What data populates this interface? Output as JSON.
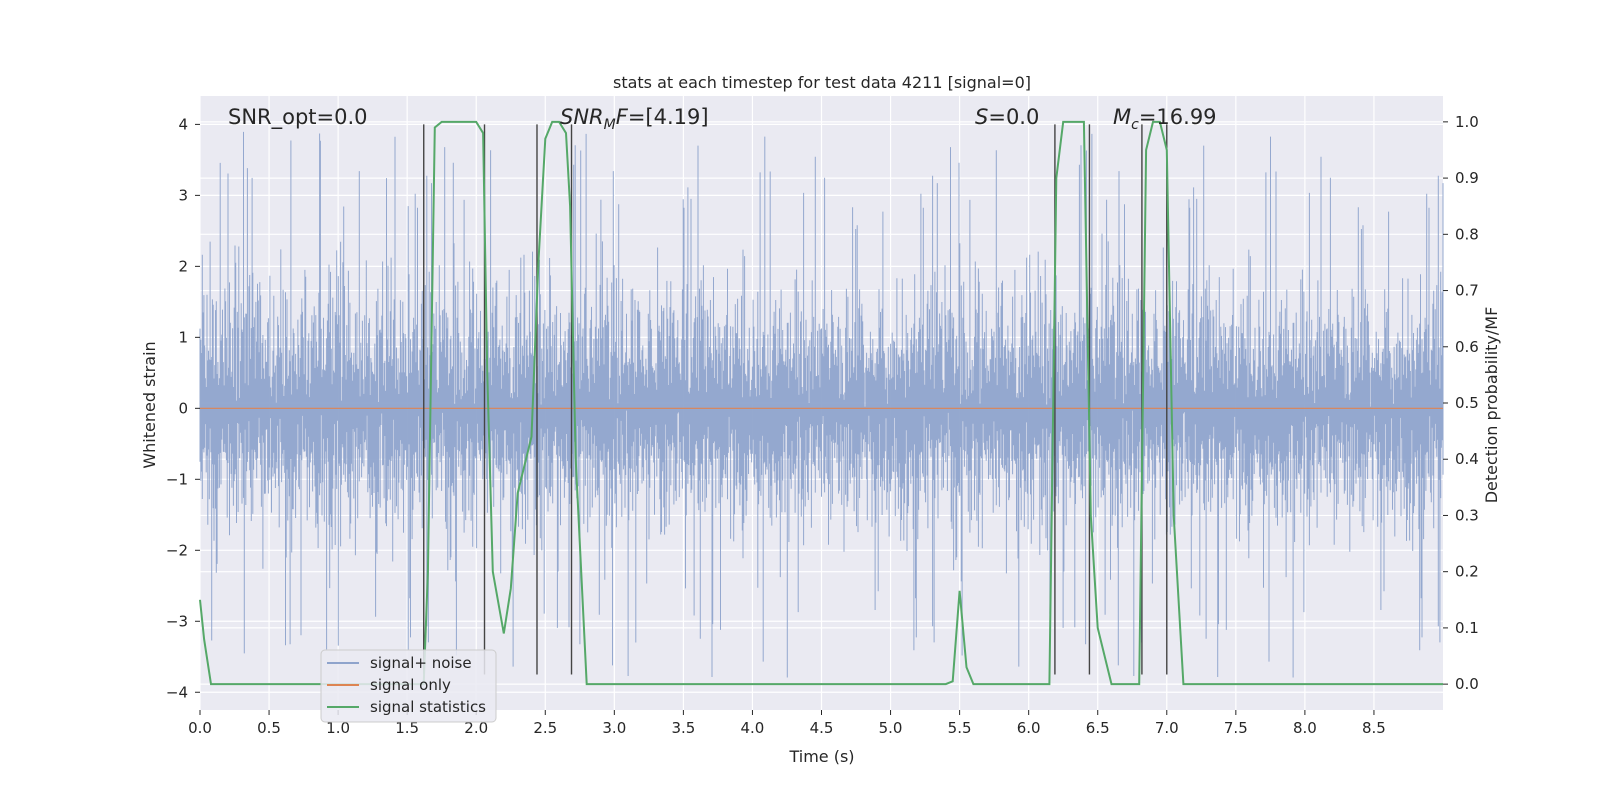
{
  "chart_data": {
    "type": "line",
    "title": "stats at each timestep for test data 4211 [signal=0]",
    "xlabel": "Time (s)",
    "ylabel_left": "Whitened strain",
    "ylabel_right": "Detection probability/MF",
    "xlim": [
      0.0,
      9.0
    ],
    "ylim_left": [
      -4.25,
      4.4
    ],
    "ylim_right": [
      -0.046,
      1.046
    ],
    "x_ticks": [
      "0.0",
      "0.5",
      "1.0",
      "1.5",
      "2.0",
      "2.5",
      "3.0",
      "3.5",
      "4.0",
      "4.5",
      "5.0",
      "5.5",
      "6.0",
      "6.5",
      "7.0",
      "7.5",
      "8.0",
      "8.5"
    ],
    "x_tick_values": [
      0.0,
      0.5,
      1.0,
      1.5,
      2.0,
      2.5,
      3.0,
      3.5,
      4.0,
      4.5,
      5.0,
      5.5,
      6.0,
      6.5,
      7.0,
      7.5,
      8.0,
      8.5
    ],
    "y_left_ticks": [
      "4",
      "3",
      "2",
      "1",
      "0",
      "−1",
      "−2",
      "−3",
      "−4"
    ],
    "y_left_tick_values": [
      4,
      3,
      2,
      1,
      0,
      -1,
      -2,
      -3,
      -4
    ],
    "y_right_ticks": [
      "1.0",
      "0.9",
      "0.8",
      "0.7",
      "0.6",
      "0.5",
      "0.4",
      "0.3",
      "0.2",
      "0.1",
      "0.0"
    ],
    "y_right_tick_values": [
      1.0,
      0.9,
      0.8,
      0.7,
      0.6,
      0.5,
      0.4,
      0.3,
      0.2,
      0.1,
      0.0
    ],
    "grid": true,
    "legend_position": "lower-left",
    "annotations": {
      "snr_opt": "SNR_opt=0.0",
      "snr_mf_main": "SNR",
      "snr_mf_sub": "M",
      "snr_mf_rest": "F=[4.19]",
      "s_italic": "S",
      "s_rest": "=0.0",
      "mc_main": "M",
      "mc_sub": "c",
      "mc_rest": "=16.99"
    },
    "series": [
      {
        "name": "signal+ noise",
        "color": "#8fa4cc",
        "axis": "left",
        "style": "noise band approx [-2.5, 2.5] with spikes to ±3.9"
      },
      {
        "name": "signal only",
        "color": "#dd8452",
        "axis": "left",
        "values_constant": 0.0
      },
      {
        "name": "signal statistics",
        "color": "#55a868",
        "axis": "right",
        "x": [
          0.0,
          0.03,
          0.08,
          0.15,
          1.5,
          1.62,
          1.65,
          1.7,
          1.75,
          2.0,
          2.05,
          2.08,
          2.12,
          2.2,
          2.25,
          2.3,
          2.4,
          2.45,
          2.5,
          2.55,
          2.6,
          2.65,
          2.68,
          2.72,
          2.8,
          2.85,
          2.9,
          5.4,
          5.45,
          5.5,
          5.55,
          5.6,
          6.15,
          6.2,
          6.25,
          6.4,
          6.45,
          6.5,
          6.6,
          6.8,
          6.85,
          6.9,
          6.95,
          7.0,
          7.05,
          7.12,
          7.2,
          9.0
        ],
        "y": [
          0.15,
          0.08,
          0.0,
          0.0,
          0.0,
          0.0,
          0.2,
          0.99,
          1.0,
          1.0,
          0.98,
          0.55,
          0.2,
          0.09,
          0.17,
          0.34,
          0.44,
          0.75,
          0.97,
          1.0,
          1.0,
          0.98,
          0.85,
          0.4,
          0.0,
          0.0,
          0.0,
          0.0,
          0.005,
          0.166,
          0.03,
          0.0,
          0.0,
          0.9,
          1.0,
          1.0,
          0.3,
          0.1,
          0.0,
          0.0,
          0.95,
          1.0,
          1.0,
          0.95,
          0.3,
          0.0,
          0.0,
          0.0
        ]
      }
    ],
    "vertical_markers": [
      {
        "x": 1.62,
        "ymin": -3.75,
        "ymax": 4.0
      },
      {
        "x": 2.06,
        "ymin": -3.75,
        "ymax": 4.0
      },
      {
        "x": 2.44,
        "ymin": -3.75,
        "ymax": 4.0
      },
      {
        "x": 2.69,
        "ymin": -3.75,
        "ymax": 4.0
      },
      {
        "x": 6.19,
        "ymin": -3.75,
        "ymax": 4.0
      },
      {
        "x": 6.44,
        "ymin": -3.75,
        "ymax": 4.0
      },
      {
        "x": 6.82,
        "ymin": -3.75,
        "ymax": 4.0
      },
      {
        "x": 7.0,
        "ymin": -3.75,
        "ymax": 4.0
      }
    ]
  },
  "colors": {
    "background": "#eaeaf2",
    "grid": "#ffffff",
    "noise": "#8fa4cc",
    "signal_only": "#dd8452",
    "statistics": "#55a868",
    "markers": "#444444",
    "text": "#262626"
  }
}
